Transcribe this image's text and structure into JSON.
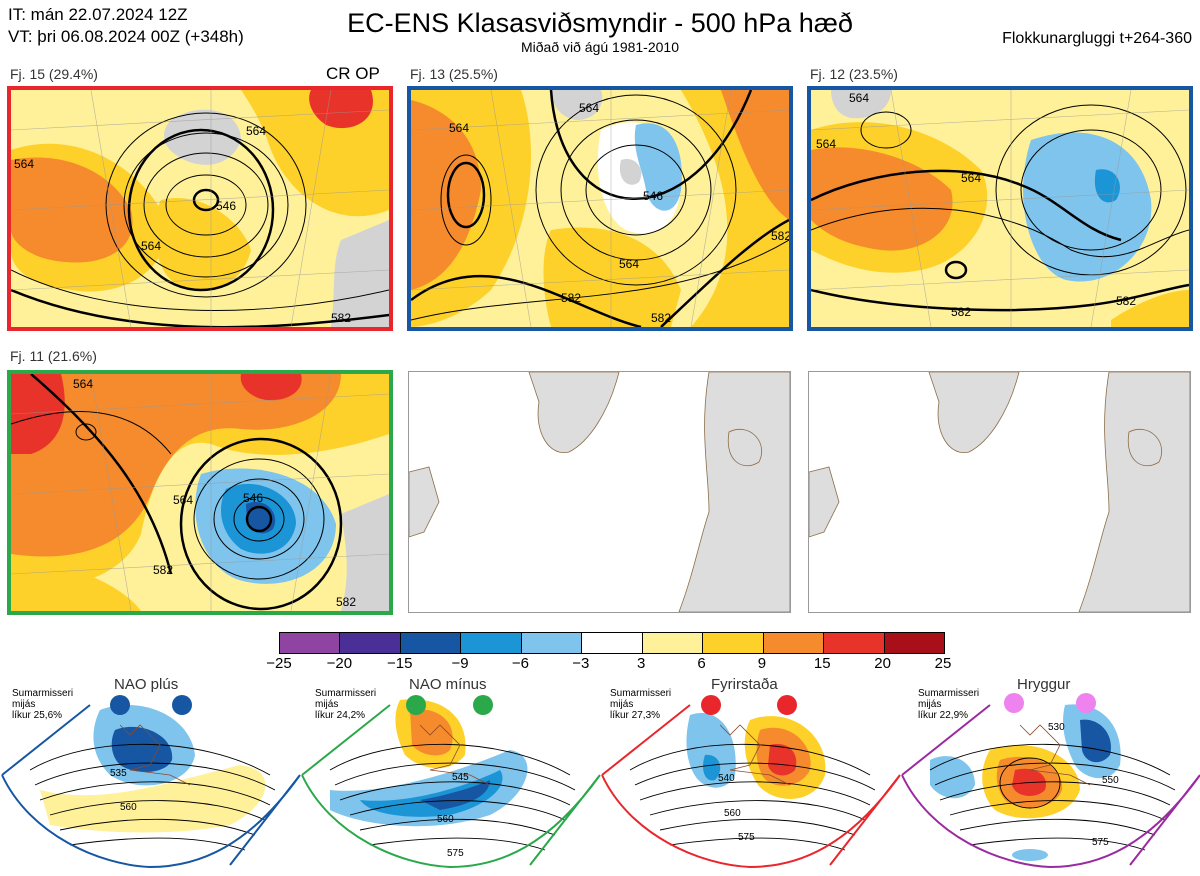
{
  "header": {
    "it_line": "IT: mán 22.07.2024 12Z",
    "vt_line": "VT: þri 06.08.2024 00Z  (+348h)",
    "title": "EC-ENS Klasasviðsmyndir - 500 hPa hæð",
    "subtitle": "Miðað við ágú 1981-2010",
    "window": "Flokkunargluggi t+264-360"
  },
  "clusters": [
    {
      "label": "Fj. 15 (29.4%)",
      "tag": "CR OP",
      "border": "#e8262b",
      "contours": [
        "564",
        "546",
        "564",
        "564",
        "582"
      ]
    },
    {
      "label": "Fj. 13 (25.5%)",
      "tag": "",
      "border": "#1656a3",
      "contours": [
        "564",
        "564",
        "546",
        "564",
        "582",
        "582",
        "582"
      ]
    },
    {
      "label": "Fj. 12 (23.5%)",
      "tag": "",
      "border": "#1656a3",
      "contours": [
        "564",
        "564",
        "564",
        "582",
        "582"
      ]
    },
    {
      "label": "Fj. 11 (21.6%)",
      "tag": "",
      "border": "#2aa84a",
      "contours": [
        "564",
        "546",
        "564",
        "582",
        "582"
      ]
    }
  ],
  "colorbar": {
    "ticks": [
      "−25",
      "−20",
      "−15",
      "−9",
      "−6",
      "−3",
      "3",
      "6",
      "9",
      "15",
      "20",
      "25"
    ],
    "colors": [
      "#8e44a0",
      "#4a2f96",
      "#1656a3",
      "#1b95d6",
      "#7fc4ec",
      "#ffffff",
      "#fff19a",
      "#fdd12a",
      "#f58b2d",
      "#e8332b",
      "#a80f18"
    ]
  },
  "regimes": [
    {
      "name": "NAO plús",
      "note": [
        "Sumarmisseri",
        "mijás",
        "líkur 25,6%"
      ],
      "color": "#1656a3",
      "contours": [
        "535",
        "560"
      ]
    },
    {
      "name": "NAO mínus",
      "note": [
        "Sumarmisseri",
        "mijás",
        "líkur 24,2%"
      ],
      "color": "#2aa84a",
      "contours": [
        "545",
        "560",
        "575"
      ]
    },
    {
      "name": "Fyrirstaða",
      "note": [
        "Sumarmisseri",
        "mijás",
        "líkur 27,3%"
      ],
      "color": "#e8262b",
      "contours": [
        "540",
        "560",
        "575"
      ]
    },
    {
      "name": "Hryggur",
      "note": [
        "Sumarmisseri",
        "mijás",
        "líkur 22,9%"
      ],
      "color": "#9b2aa0",
      "contours": [
        "530",
        "550",
        "575"
      ]
    }
  ]
}
